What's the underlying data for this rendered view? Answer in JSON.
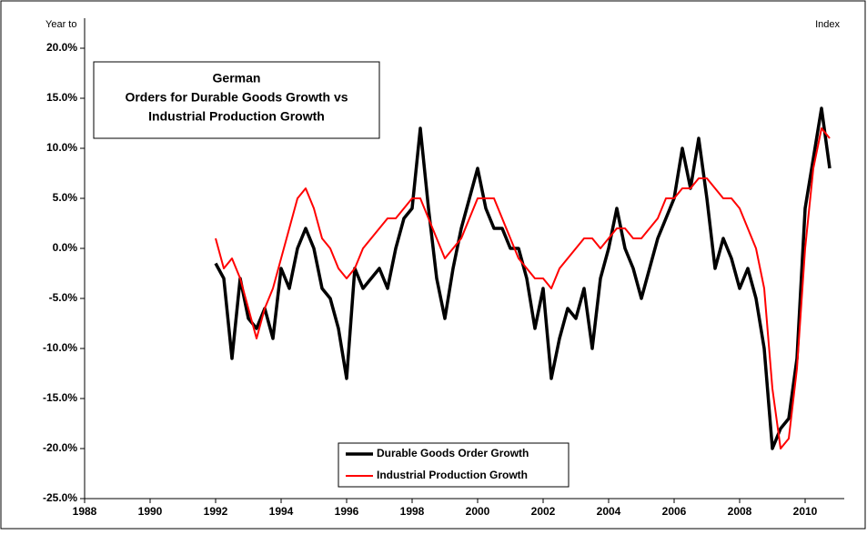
{
  "chart_data": {
    "type": "line",
    "title": [
      "German",
      "Orders for Durable Goods Growth  vs",
      "Industrial Production Growth"
    ],
    "y_label": "Year to",
    "y2_label": "Index",
    "x": [
      1992,
      1992.25,
      1992.5,
      1992.75,
      1993,
      1993.25,
      1993.5,
      1993.75,
      1994,
      1994.25,
      1994.5,
      1994.75,
      1995,
      1995.25,
      1995.5,
      1995.75,
      1996,
      1996.25,
      1996.5,
      1996.75,
      1997,
      1997.25,
      1997.5,
      1997.75,
      1998,
      1998.25,
      1998.5,
      1998.75,
      1999,
      1999.25,
      1999.5,
      1999.75,
      2000,
      2000.25,
      2000.5,
      2000.75,
      2001,
      2001.25,
      2001.5,
      2001.75,
      2002,
      2002.25,
      2002.5,
      2002.75,
      2003,
      2003.25,
      2003.5,
      2003.75,
      2004,
      2004.25,
      2004.5,
      2004.75,
      2005,
      2005.25,
      2005.5,
      2005.75,
      2006,
      2006.25,
      2006.5,
      2006.75,
      2007,
      2007.25,
      2007.5,
      2007.75,
      2008,
      2008.25,
      2008.5,
      2008.75,
      2009,
      2009.25,
      2009.5,
      2009.75,
      2010,
      2010.25,
      2010.5,
      2010.75
    ],
    "series": [
      {
        "name": "Durable Goods Order Growth",
        "color": "#000000",
        "width": 3.5,
        "values": [
          -1.5,
          -3,
          -11,
          -3,
          -7,
          -8,
          -6,
          -9,
          -2,
          -4,
          0,
          2,
          0,
          -4,
          -5,
          -8,
          -13,
          -2,
          -4,
          -3,
          -2,
          -4,
          0,
          3,
          4,
          12,
          4,
          -3,
          -7,
          -2,
          2,
          5,
          8,
          4,
          2,
          2,
          0,
          0,
          -3,
          -8,
          -4,
          -13,
          -9,
          -6,
          -7,
          -4,
          -10,
          -3,
          0,
          4,
          0,
          -2,
          -5,
          -2,
          1,
          3,
          5,
          10,
          6,
          11,
          5,
          -2,
          1,
          -1,
          -4,
          -2,
          -5,
          -10,
          -20,
          -18,
          -17,
          -11,
          4,
          9,
          14,
          8
        ]
      },
      {
        "name": "Industrial Production Growth",
        "color": "#ff0000",
        "width": 2,
        "values": [
          1,
          -2,
          -1,
          -3,
          -6,
          -9,
          -6,
          -4,
          -1,
          2,
          5,
          6,
          4,
          1,
          0,
          -2,
          -3,
          -2,
          0,
          1,
          2,
          3,
          3,
          4,
          5,
          5,
          3,
          1,
          -1,
          0,
          1,
          3,
          5,
          5,
          5,
          3,
          1,
          -1,
          -2,
          -3,
          -3,
          -4,
          -2,
          -1,
          0,
          1,
          1,
          0,
          1,
          2,
          2,
          1,
          1,
          2,
          3,
          5,
          5,
          6,
          6,
          7,
          7,
          6,
          5,
          5,
          4,
          2,
          0,
          -4,
          -14,
          -20,
          -19,
          -12,
          0,
          8,
          12,
          11
        ]
      }
    ],
    "xlim": [
      1988,
      2011
    ],
    "xticks": [
      1988,
      1990,
      1992,
      1994,
      1996,
      1998,
      2000,
      2002,
      2004,
      2006,
      2008,
      2010
    ],
    "ylim": [
      -25,
      20
    ],
    "yticks": [
      {
        "value": -25,
        "label": "-25.0%"
      },
      {
        "value": -20,
        "label": "-20.0%"
      },
      {
        "value": -15,
        "label": "-15.0%"
      },
      {
        "value": -10,
        "label": "-10.0%"
      },
      {
        "value": -5,
        "label": "-5.0%"
      },
      {
        "value": 0,
        "label": "0.0%"
      },
      {
        "value": 5,
        "label": "5.0%"
      },
      {
        "value": 10,
        "label": "10.0%"
      },
      {
        "value": 15,
        "label": "15.0%"
      },
      {
        "value": 20,
        "label": "20.0%"
      }
    ]
  }
}
